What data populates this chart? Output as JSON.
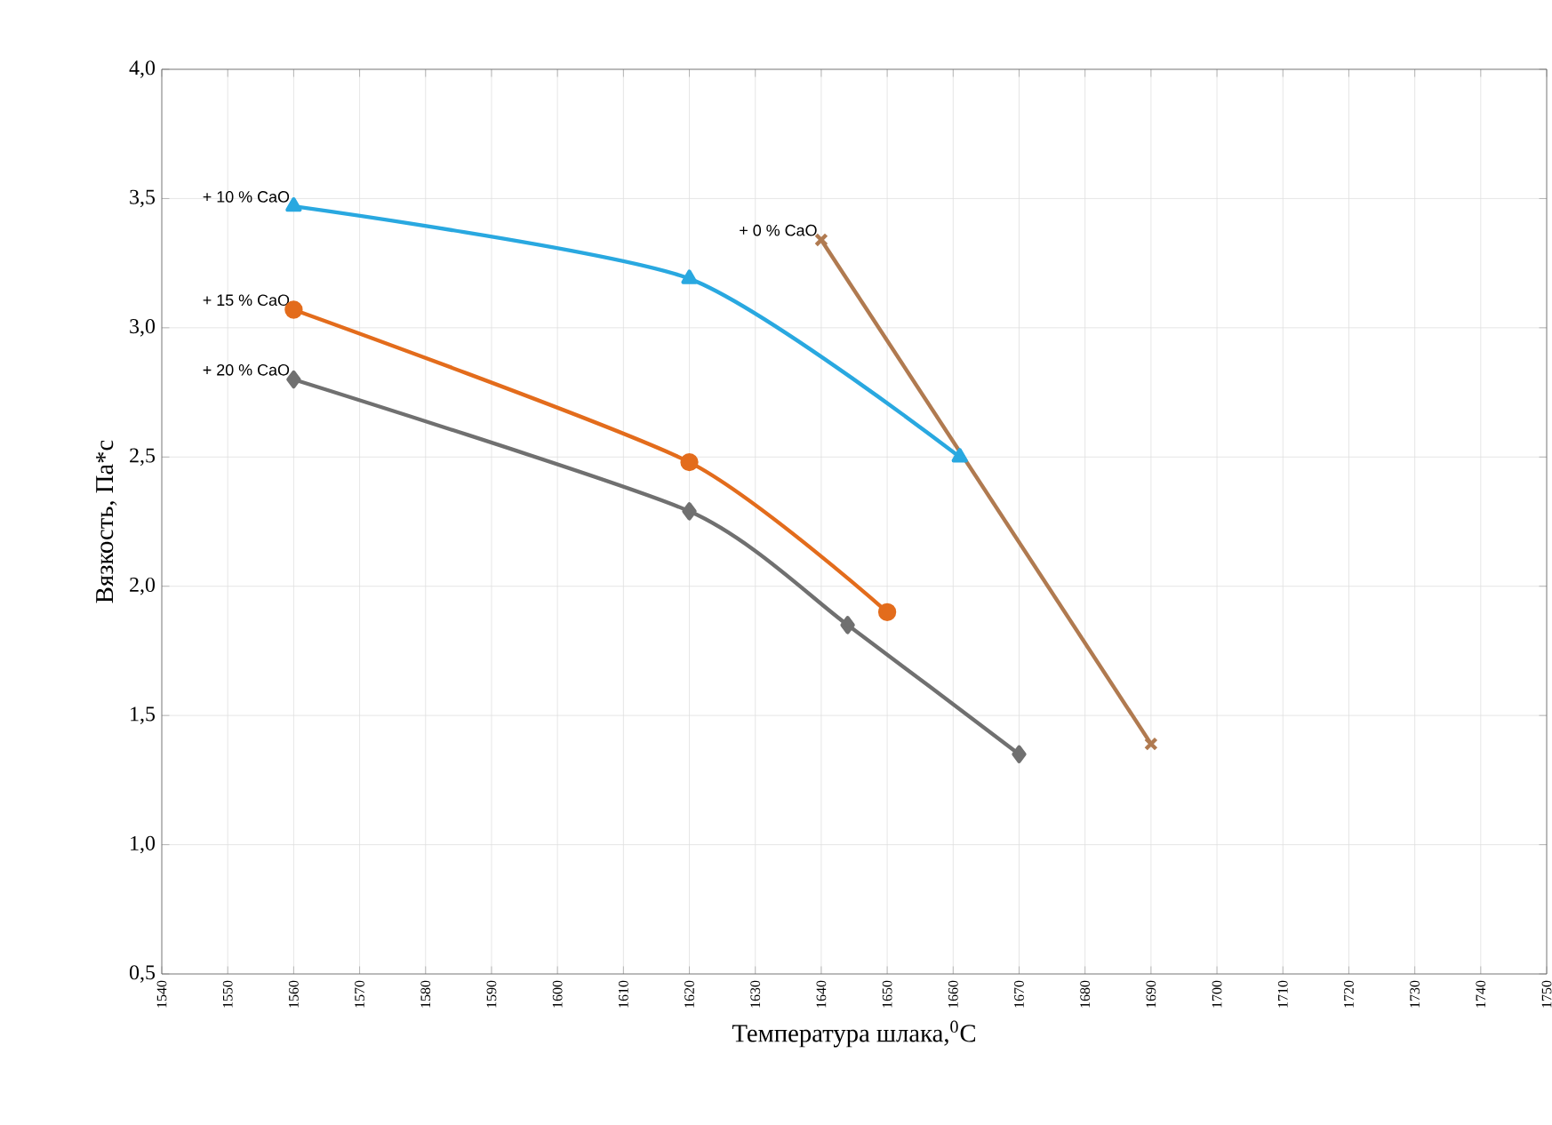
{
  "chart_data": {
    "type": "line",
    "xlabel": "Температура шлака,$^{0}$C",
    "ylabel": "Вязкость, Па*с",
    "xlim": [
      1540,
      1750
    ],
    "xticks": [
      1540,
      1550,
      1560,
      1570,
      1580,
      1590,
      1600,
      1610,
      1620,
      1630,
      1640,
      1650,
      1660,
      1670,
      1680,
      1690,
      1700,
      1710,
      1720,
      1730,
      1740,
      1750
    ],
    "ylim": [
      0.5,
      4.0
    ],
    "yticks": [
      {
        "value": 0.5,
        "label": "0,5"
      },
      {
        "value": 1.0,
        "label": "1,0"
      },
      {
        "value": 1.5,
        "label": "1,5"
      },
      {
        "value": 2.0,
        "label": "2,0"
      },
      {
        "value": 2.5,
        "label": "2,5"
      },
      {
        "value": 3.0,
        "label": "3,0"
      },
      {
        "value": 3.5,
        "label": "3,5"
      },
      {
        "value": 4.0,
        "label": "4,0"
      }
    ],
    "grid": true,
    "legend": false,
    "line_style": "solid",
    "series": [
      {
        "name": "+ 10 % CaO",
        "color": "#29a8e0",
        "marker": "triangle",
        "x": [
          1560,
          1620,
          1661
        ],
        "values": [
          3.47,
          3.19,
          2.5
        ]
      },
      {
        "name": "+ 15 % CaO",
        "color": "#e36c1c",
        "marker": "circle",
        "x": [
          1560,
          1620,
          1650
        ],
        "values": [
          3.07,
          2.48,
          1.9
        ]
      },
      {
        "name": "+ 20 % CaO",
        "color": "#707070",
        "marker": "diamond",
        "x": [
          1560,
          1620,
          1644,
          1670
        ],
        "values": [
          2.8,
          2.29,
          1.85,
          1.35
        ]
      },
      {
        "name": "+ 0 % CaO",
        "color": "#b07a50",
        "marker": "cross",
        "x": [
          1640,
          1690
        ],
        "values": [
          3.34,
          1.39
        ]
      }
    ]
  }
}
